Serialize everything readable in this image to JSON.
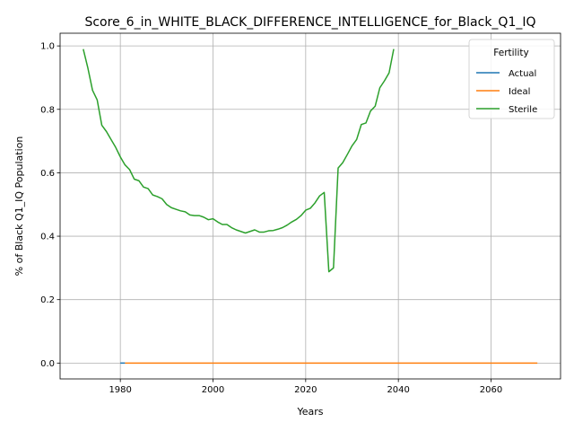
{
  "chart_data": {
    "type": "line",
    "title": "Score_6_in_WHITE_BLACK_DIFFERENCE_INTELLIGENCE_for_Black_Q1_IQ",
    "xlabel": "Years",
    "ylabel": "% of Black Q1_IQ Population",
    "xlim": [
      1967,
      2075
    ],
    "ylim": [
      -0.05,
      1.04
    ],
    "xticks": [
      1980,
      2000,
      2020,
      2040,
      2060
    ],
    "yticks": [
      0.0,
      0.2,
      0.4,
      0.6,
      0.8,
      1.0
    ],
    "grid": true,
    "legend": {
      "title": "Fertility",
      "placement": "top-right"
    },
    "series": [
      {
        "name": "Actual",
        "color": "#1f77b4",
        "x": [
          1980,
          1981
        ],
        "y": [
          0.0,
          0.0
        ]
      },
      {
        "name": "Ideal",
        "color": "#ff7f0e",
        "x": [
          1981,
          2070
        ],
        "y": [
          0.0,
          0.0
        ]
      },
      {
        "name": "Sterile",
        "color": "#2ca02c",
        "x": [
          1972,
          1973,
          1974,
          1975,
          1976,
          1977,
          1978,
          1979,
          1980,
          1981,
          1982,
          1983,
          1984,
          1985,
          1986,
          1987,
          1988,
          1989,
          1990,
          1991,
          1992,
          1993,
          1994,
          1995,
          1996,
          1997,
          1998,
          1999,
          2000,
          2001,
          2002,
          2003,
          2004,
          2005,
          2006,
          2007,
          2008,
          2009,
          2010,
          2011,
          2012,
          2013,
          2014,
          2015,
          2016,
          2017,
          2018,
          2019,
          2020,
          2021,
          2022,
          2023,
          2024,
          2025,
          2026,
          2027,
          2028,
          2029,
          2030,
          2031,
          2032,
          2033,
          2034,
          2035,
          2036,
          2037,
          2038,
          2039
        ],
        "y": [
          0.99,
          0.93,
          0.86,
          0.83,
          0.75,
          0.73,
          0.705,
          0.68,
          0.65,
          0.625,
          0.61,
          0.58,
          0.575,
          0.555,
          0.55,
          0.53,
          0.525,
          0.518,
          0.5,
          0.49,
          0.485,
          0.48,
          0.477,
          0.467,
          0.465,
          0.465,
          0.46,
          0.452,
          0.455,
          0.445,
          0.437,
          0.437,
          0.427,
          0.42,
          0.415,
          0.41,
          0.415,
          0.42,
          0.413,
          0.413,
          0.417,
          0.418,
          0.422,
          0.427,
          0.435,
          0.445,
          0.453,
          0.465,
          0.482,
          0.488,
          0.505,
          0.527,
          0.538,
          0.288,
          0.3,
          0.615,
          0.632,
          0.658,
          0.685,
          0.705,
          0.752,
          0.757,
          0.795,
          0.81,
          0.868,
          0.89,
          0.915,
          0.99
        ]
      }
    ]
  }
}
